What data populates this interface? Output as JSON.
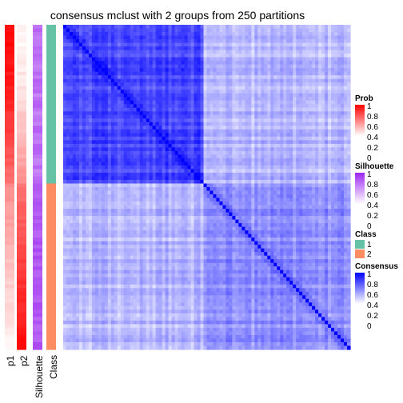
{
  "chart_data": {
    "type": "heatmap",
    "title": "consensus mclust with 2 groups from 250 partitions",
    "annotation_columns": [
      {
        "key": "p1",
        "label": "p1"
      },
      {
        "key": "p2",
        "label": "p2"
      },
      {
        "key": "silhouette",
        "label": "Silhouette"
      },
      {
        "key": "class",
        "label": "Class"
      }
    ],
    "groups": [
      {
        "class": "1",
        "fraction": 0.49,
        "p1_range": [
          0.55,
          0.98
        ],
        "p2_range": [
          0.02,
          0.45
        ],
        "silhouette_range": [
          0.55,
          0.75
        ],
        "within_consensus": [
          0.55,
          0.9
        ]
      },
      {
        "class": "2",
        "fraction": 0.51,
        "p1_range": [
          0.03,
          0.45
        ],
        "p2_range": [
          0.55,
          0.97
        ],
        "silhouette_range": [
          0.7,
          0.85
        ],
        "within_consensus": [
          0.25,
          0.6
        ]
      }
    ],
    "between_group_consensus": [
      0.1,
      0.45
    ],
    "diagonal_consensus": 1,
    "legends": [
      {
        "title": "Prob",
        "ticks": [
          "1",
          "0.8",
          "0.6",
          "0.4",
          "0.2",
          "0"
        ],
        "colors": [
          "#ff0000",
          "#ffffff"
        ]
      },
      {
        "title": "Silhouette",
        "ticks": [
          "1",
          "0.8",
          "0.6",
          "0.4",
          "0.2",
          "0"
        ],
        "colors": [
          "#9c27f0",
          "#ffffff"
        ]
      },
      {
        "title": "Class",
        "ticks": [
          "1",
          "2"
        ],
        "colors": [
          "#66c2a5",
          "#fc8d62"
        ]
      },
      {
        "title": "Consensus",
        "ticks": [
          "1",
          "0.8",
          "0.6",
          "0.4",
          "0.2",
          "0"
        ],
        "colors": [
          "#0000ff",
          "#ffffff"
        ]
      }
    ]
  }
}
